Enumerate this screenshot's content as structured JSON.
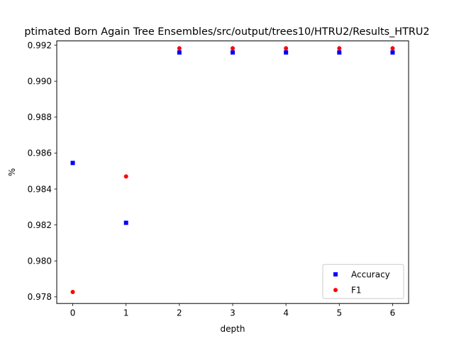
{
  "chart_data": {
    "type": "scatter",
    "title": "ptimated Born Again Tree Ensembles/src/output/trees10/HTRU2/Results_HTRU2",
    "xlabel": "depth",
    "ylabel": "%",
    "xlim": [
      -0.3,
      6.3
    ],
    "ylim": [
      0.97763,
      0.99224
    ],
    "x_ticks": [
      0,
      1,
      2,
      3,
      4,
      5,
      6
    ],
    "y_ticks": [
      0.978,
      0.98,
      0.982,
      0.984,
      0.986,
      0.988,
      0.99,
      0.992
    ],
    "grid": false,
    "legend_position": "lower-right",
    "series": [
      {
        "name": "Accuracy",
        "marker": "square",
        "color": "#0000ff",
        "x": [
          0,
          1,
          2,
          3,
          4,
          5,
          6
        ],
        "y": [
          0.98545,
          0.98212,
          0.9916,
          0.9916,
          0.9916,
          0.9916,
          0.9916
        ]
      },
      {
        "name": "F1",
        "marker": "circle",
        "color": "#ff0000",
        "x": [
          0,
          1,
          2,
          3,
          4,
          5,
          6
        ],
        "y": [
          0.97827,
          0.9847,
          0.99183,
          0.99183,
          0.99183,
          0.99183,
          0.99183
        ]
      }
    ]
  }
}
